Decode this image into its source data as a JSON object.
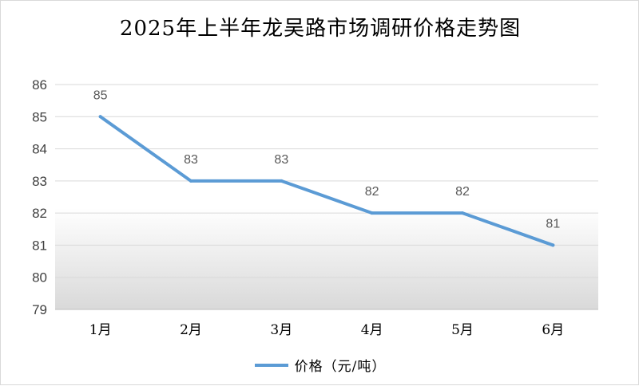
{
  "chart_data": {
    "type": "line",
    "title": "2025年上半年龙吴路市场调研价格走势图",
    "categories": [
      "1月",
      "2月",
      "3月",
      "4月",
      "5月",
      "6月"
    ],
    "series": [
      {
        "name": "价格（元/吨）",
        "values": [
          85,
          83,
          83,
          82,
          82,
          81
        ],
        "color": "#5b9bd5"
      }
    ],
    "ylim": [
      79,
      86
    ],
    "yticks": [
      79,
      80,
      81,
      82,
      83,
      84,
      85,
      86
    ],
    "grid": true,
    "data_labels": true,
    "legend_position": "bottom"
  }
}
